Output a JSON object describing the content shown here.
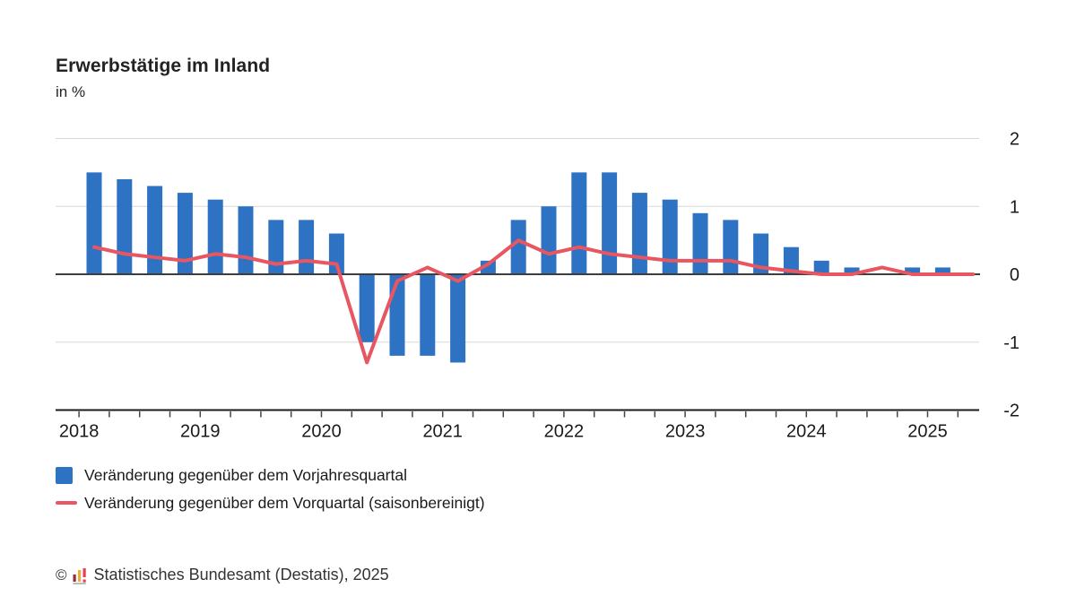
{
  "header": {
    "title": "Erwerbstätige im Inland",
    "subtitle": "in %"
  },
  "chart_data": {
    "type": "bar",
    "title": "Erwerbstätige im Inland",
    "unit_label": "in %",
    "categories": [
      "2018 Q1",
      "2018 Q2",
      "2018 Q3",
      "2018 Q4",
      "2019 Q1",
      "2019 Q2",
      "2019 Q3",
      "2019 Q4",
      "2020 Q1",
      "2020 Q2",
      "2020 Q3",
      "2020 Q4",
      "2021 Q1",
      "2021 Q2",
      "2021 Q3",
      "2021 Q4",
      "2022 Q1",
      "2022 Q2",
      "2022 Q3",
      "2022 Q4",
      "2023 Q1",
      "2023 Q2",
      "2023 Q3",
      "2023 Q4",
      "2024 Q1",
      "2024 Q2",
      "2024 Q3",
      "2024 Q4",
      "2025 Q1",
      "2025 Q2"
    ],
    "x_year_labels": [
      "2018",
      "2019",
      "2020",
      "2021",
      "2022",
      "2023",
      "2024",
      "2025"
    ],
    "yticks": [
      2,
      1,
      0,
      -1,
      -2
    ],
    "ylim": [
      -2,
      2
    ],
    "grid": true,
    "legend_position": "bottom-left",
    "series": [
      {
        "name": "Veränderung gegenüber dem Vorjahresquartal",
        "type": "bar",
        "color": "#2d72c3",
        "values": [
          1.5,
          1.4,
          1.3,
          1.2,
          1.1,
          1.0,
          0.8,
          0.8,
          0.6,
          -1.0,
          -1.2,
          -1.2,
          -1.3,
          0.2,
          0.8,
          1.0,
          1.5,
          1.5,
          1.2,
          1.1,
          0.9,
          0.8,
          0.6,
          0.4,
          0.2,
          0.1,
          0.0,
          0.1,
          0.1,
          0.0
        ]
      },
      {
        "name": "Veränderung gegenüber dem Vorquartal (saisonbereinigt)",
        "type": "line",
        "color": "#e85662",
        "values": [
          0.4,
          0.3,
          0.25,
          0.2,
          0.3,
          0.25,
          0.15,
          0.2,
          0.15,
          -1.3,
          -0.1,
          0.1,
          -0.1,
          0.15,
          0.5,
          0.3,
          0.4,
          0.3,
          0.25,
          0.2,
          0.2,
          0.2,
          0.1,
          0.05,
          0.0,
          0.0,
          0.1,
          0.0,
          0.0,
          0.0
        ]
      }
    ]
  },
  "footer": {
    "copyright": "©",
    "source": "Statistisches Bundesamt (Destatis), 2025"
  }
}
